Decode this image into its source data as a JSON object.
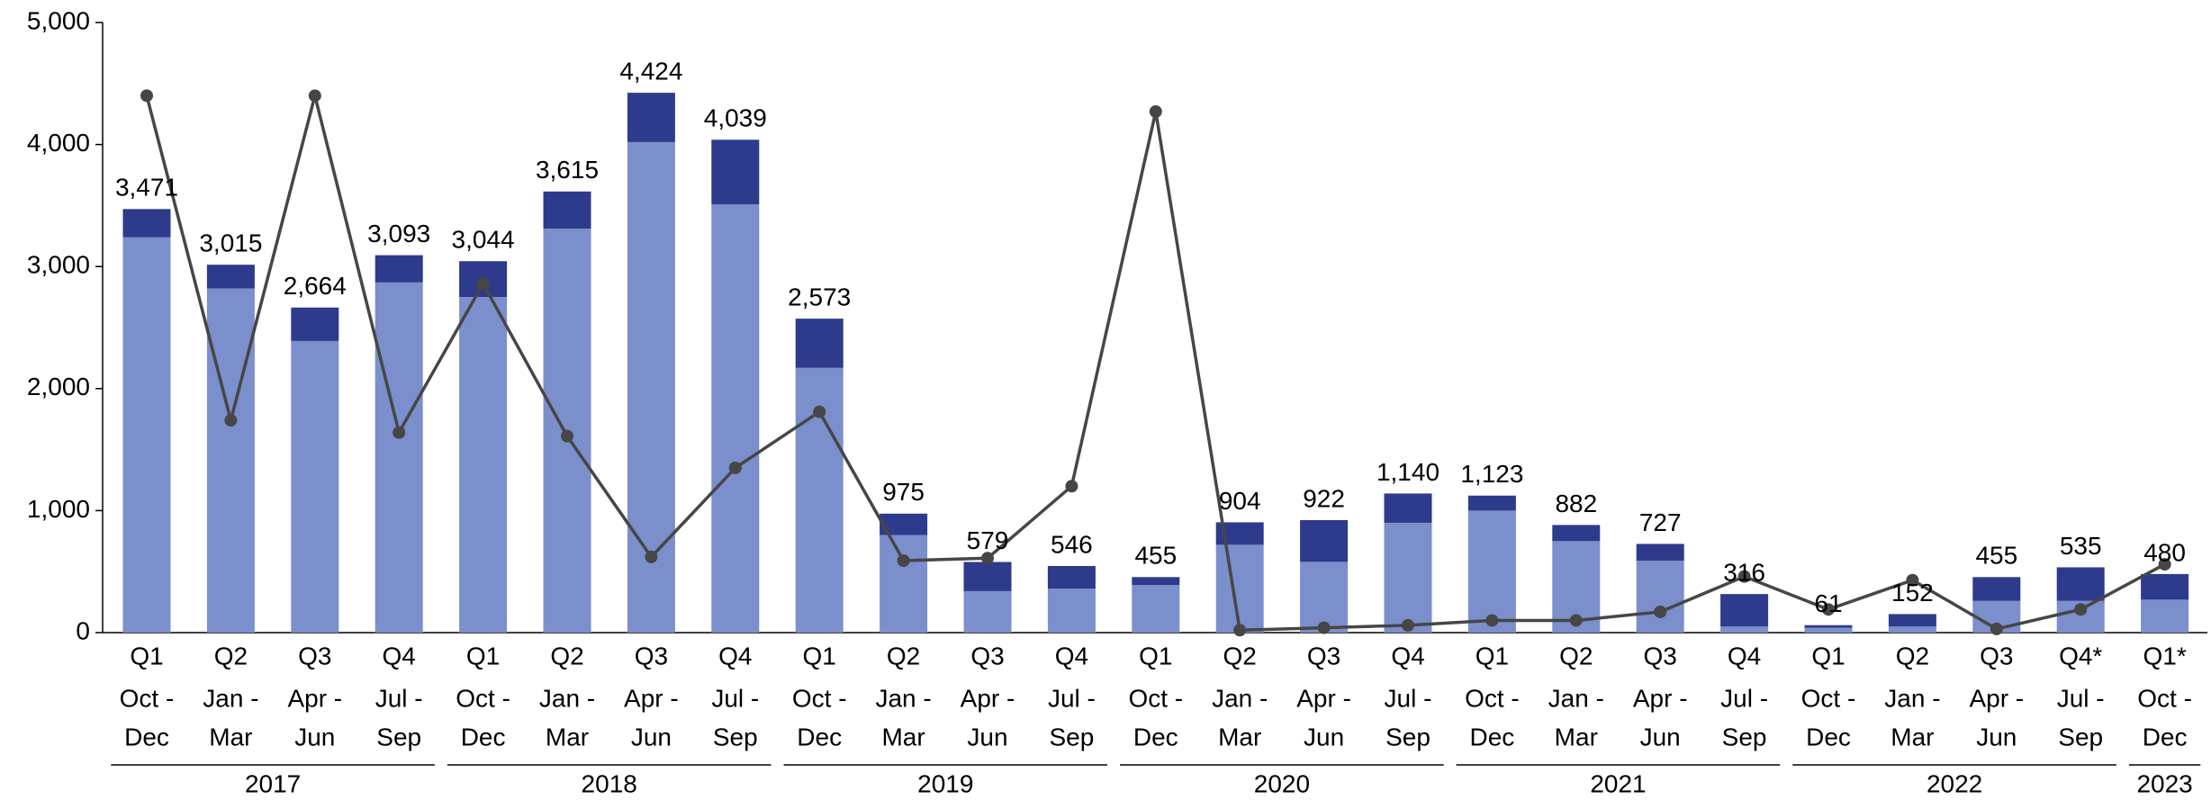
{
  "chart_data": {
    "type": "bar",
    "categories": [
      [
        "Q1",
        "Oct -",
        "Dec"
      ],
      [
        "Q2",
        "Jan -",
        "Mar"
      ],
      [
        "Q3",
        "Apr -",
        "Jun"
      ],
      [
        "Q4",
        "Jul -",
        "Sep"
      ],
      [
        "Q1",
        "Oct -",
        "Dec"
      ],
      [
        "Q2",
        "Jan -",
        "Mar"
      ],
      [
        "Q3",
        "Apr -",
        "Jun"
      ],
      [
        "Q4",
        "Jul -",
        "Sep"
      ],
      [
        "Q1",
        "Oct -",
        "Dec"
      ],
      [
        "Q2",
        "Jan -",
        "Mar"
      ],
      [
        "Q3",
        "Apr -",
        "Jun"
      ],
      [
        "Q4",
        "Jul -",
        "Sep"
      ],
      [
        "Q1",
        "Oct -",
        "Dec"
      ],
      [
        "Q2",
        "Jan -",
        "Mar"
      ],
      [
        "Q3",
        "Apr -",
        "Jun"
      ],
      [
        "Q4",
        "Jul -",
        "Sep"
      ],
      [
        "Q1",
        "Oct -",
        "Dec"
      ],
      [
        "Q2",
        "Jan -",
        "Mar"
      ],
      [
        "Q3",
        "Apr -",
        "Jun"
      ],
      [
        "Q4",
        "Jul -",
        "Sep"
      ],
      [
        "Q1",
        "Oct -",
        "Dec"
      ],
      [
        "Q2",
        "Jan -",
        "Mar"
      ],
      [
        "Q3",
        "Apr -",
        "Jun"
      ],
      [
        "Q4*",
        "Jul -",
        "Sep"
      ],
      [
        "Q1*",
        "Oct -",
        "Dec"
      ]
    ],
    "groups": [
      {
        "label": "2017",
        "count": 4
      },
      {
        "label": "2018",
        "count": 4
      },
      {
        "label": "2019",
        "count": 4
      },
      {
        "label": "2020",
        "count": 4
      },
      {
        "label": "2021",
        "count": 4
      },
      {
        "label": "2022",
        "count": 4
      },
      {
        "label": "2023",
        "count": 1
      }
    ],
    "series": [
      {
        "kind": "bar",
        "color": "#7b8fcc",
        "values": [
          3240,
          2820,
          2390,
          2870,
          2750,
          3310,
          4020,
          3510,
          2170,
          800,
          340,
          360,
          390,
          720,
          580,
          900,
          1000,
          750,
          590,
          50,
          40,
          50,
          260,
          260,
          270
        ]
      },
      {
        "kind": "bar",
        "color": "#2e3a8c",
        "values": [
          231,
          195,
          274,
          223,
          294,
          305,
          404,
          529,
          403,
          175,
          239,
          186,
          65,
          184,
          342,
          240,
          123,
          132,
          137,
          266,
          21,
          102,
          195,
          275,
          210
        ]
      },
      {
        "kind": "line",
        "color": "#464646",
        "values": [
          4400,
          1740,
          4400,
          1640,
          2860,
          1610,
          620,
          1350,
          1810,
          590,
          610,
          1200,
          4270,
          20,
          40,
          60,
          100,
          100,
          170,
          460,
          190,
          430,
          30,
          190,
          560
        ]
      }
    ],
    "totals": [
      3471,
      3015,
      2664,
      3093,
      3044,
      3615,
      4424,
      4039,
      2573,
      975,
      579,
      546,
      455,
      904,
      922,
      1140,
      1123,
      882,
      727,
      316,
      61,
      152,
      455,
      535,
      480
    ],
    "total_labels": [
      "3,471",
      "3,015",
      "2,664",
      "3,093",
      "3,044",
      "3,615",
      "4,424",
      "4,039",
      "2,573",
      "975",
      "579",
      "546",
      "455",
      "904",
      "922",
      "1,140",
      "1,123",
      "882",
      "727",
      "316",
      "61",
      "152",
      "455",
      "535",
      "480"
    ],
    "ylim": [
      0,
      5000
    ],
    "yticks": [
      0,
      {
        "value": 1000,
        "label": "1,000"
      },
      {
        "value": 2000,
        "label": "2,000"
      },
      {
        "value": 3000,
        "label": "3,000"
      },
      {
        "value": 4000,
        "label": "4,000"
      },
      {
        "value": 5000,
        "label": "5,000"
      }
    ],
    "grid": false
  }
}
